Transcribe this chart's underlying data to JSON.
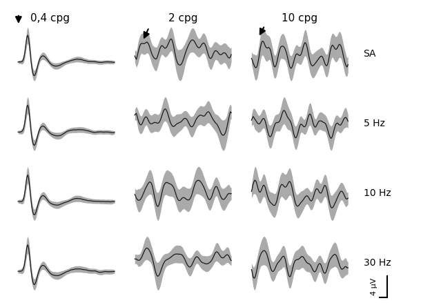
{
  "col_labels": [
    "0,4 cpg",
    "2 cpg",
    "10 cpg"
  ],
  "row_labels": [
    "SA",
    "5 Hz",
    "10 Hz",
    "30 Hz"
  ],
  "background_color": "#ffffff",
  "line_color": "#1a1a1a",
  "fill_color": "#aaaaaa",
  "n_points": 120,
  "scalebar_label": "4 μV",
  "title_fontsize": 11,
  "label_fontsize": 10
}
